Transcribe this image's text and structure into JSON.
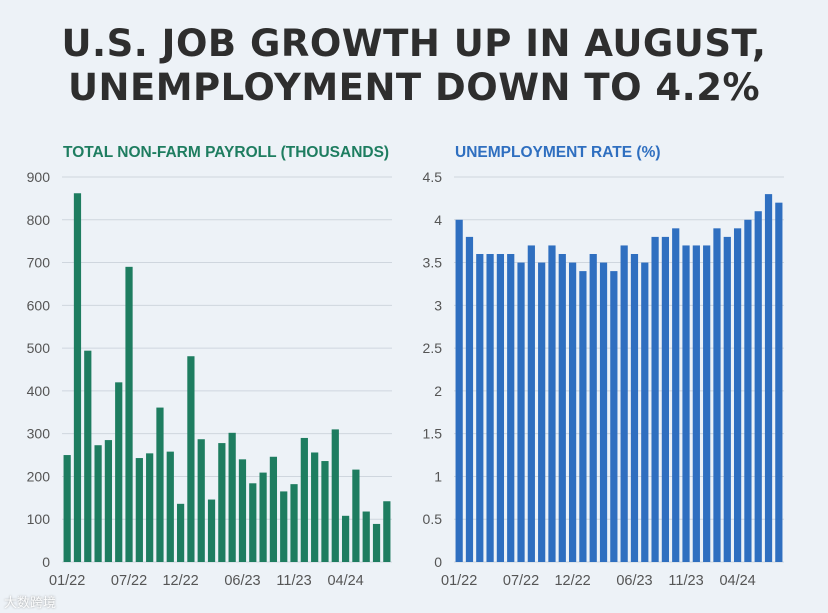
{
  "headline": {
    "line1": "U.S. JOB GROWTH UP IN AUGUST,",
    "line2": "UNEMPLOYMENT DOWN TO 4.2%"
  },
  "watermark": "大数跨境",
  "colors": {
    "background": "#edf2f7",
    "payroll": "#1e7d60",
    "unemployment": "#2f6fc0",
    "grid": "#cfd6de",
    "axis_text": "#555555"
  },
  "chart_data": [
    {
      "type": "bar",
      "title": "TOTAL NON-FARM PAYROLL (THOUSANDS)",
      "xticks": [
        "01/22",
        "07/22",
        "12/22",
        "06/23",
        "11/23",
        "04/24"
      ],
      "xtick_index": [
        0,
        6,
        11,
        17,
        22,
        27
      ],
      "ylim": [
        0,
        900
      ],
      "yticks": [
        0,
        100,
        200,
        300,
        400,
        500,
        600,
        700,
        800,
        900
      ],
      "grid": true,
      "values": [
        250,
        862,
        494,
        273,
        285,
        420,
        690,
        243,
        254,
        361,
        258,
        136,
        481,
        287,
        146,
        278,
        302,
        240,
        184,
        209,
        246,
        165,
        182,
        290,
        256,
        236,
        310,
        108,
        216,
        118,
        89,
        142
      ]
    },
    {
      "type": "bar",
      "title": "UNEMPLOYMENT RATE (%)",
      "xticks": [
        "01/22",
        "07/22",
        "12/22",
        "06/23",
        "11/23",
        "04/24"
      ],
      "xtick_index": [
        0,
        6,
        11,
        17,
        22,
        27
      ],
      "ylim": [
        0,
        4.5
      ],
      "yticks": [
        "0",
        "0.5",
        "1",
        "1.5",
        "2",
        "2.5",
        "3",
        "3.5",
        "4",
        "4.5"
      ],
      "grid": true,
      "values": [
        4.0,
        3.8,
        3.6,
        3.6,
        3.6,
        3.6,
        3.5,
        3.7,
        3.5,
        3.7,
        3.6,
        3.5,
        3.4,
        3.6,
        3.5,
        3.4,
        3.7,
        3.6,
        3.5,
        3.8,
        3.8,
        3.9,
        3.7,
        3.7,
        3.7,
        3.9,
        3.8,
        3.9,
        4.0,
        4.1,
        4.3,
        4.2
      ]
    }
  ]
}
